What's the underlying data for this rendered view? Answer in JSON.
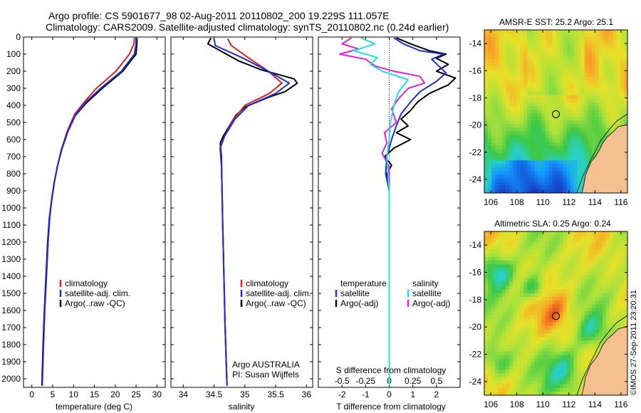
{
  "header": {
    "line1": "Argo profile: CS 5901677_98 02-Aug-2011 20110802_200 19.229S 111.057E",
    "line2": "Climatology: CARS2009. Satellite-adjusted climatology: synTS_20110802.nc (0.24d earlier)"
  },
  "side_text": "©IMOS 27-Sep-2011 23:20:31",
  "colors": {
    "climatology": "#e0201c",
    "satellite": "#1f2fd8",
    "argo": "#000000",
    "sat_salinity": "#22e0e0",
    "argo_salinity": "#e81ee0",
    "land": "#f4c08f"
  },
  "chart_data": [
    {
      "type": "line",
      "xlabel": "temperature (deg C)",
      "xticks": [
        0,
        5,
        10,
        15,
        20,
        25,
        30
      ],
      "xlim": [
        -2,
        32
      ],
      "ylim": [
        2050,
        0
      ],
      "yticks": [
        0,
        100,
        200,
        300,
        400,
        500,
        600,
        700,
        800,
        900,
        1000,
        1100,
        1200,
        1300,
        1400,
        1500,
        1600,
        1700,
        1800,
        1900,
        2000
      ],
      "legend": [
        "climatology",
        "satellite-adj. clim.",
        "Argo(..raw -QC)"
      ],
      "series": [
        {
          "name": "climatology",
          "points": [
            [
              24.6,
              5
            ],
            [
              24.5,
              40
            ],
            [
              23.4,
              100
            ],
            [
              20.2,
              200
            ],
            [
              15.5,
              300
            ],
            [
              12.6,
              380
            ],
            [
              10.3,
              450
            ],
            [
              8.5,
              550
            ],
            [
              7.2,
              650
            ],
            [
              6.2,
              750
            ],
            [
              5.4,
              850
            ],
            [
              4.8,
              950
            ],
            [
              4.3,
              1050
            ],
            [
              3.9,
              1200
            ],
            [
              3.5,
              1400
            ],
            [
              3.1,
              1600
            ],
            [
              2.8,
              1800
            ],
            [
              2.5,
              2040
            ]
          ]
        },
        {
          "name": "satellite-adj. clim.",
          "points": [
            [
              25.0,
              5
            ],
            [
              25.0,
              40
            ],
            [
              24.6,
              100
            ],
            [
              21.5,
              200
            ],
            [
              16.5,
              300
            ],
            [
              13.0,
              380
            ],
            [
              10.6,
              450
            ],
            [
              8.7,
              550
            ],
            [
              7.3,
              650
            ],
            [
              6.2,
              750
            ],
            [
              5.4,
              850
            ],
            [
              4.8,
              950
            ],
            [
              4.3,
              1050
            ],
            [
              3.9,
              1200
            ],
            [
              3.5,
              1400
            ],
            [
              3.1,
              1600
            ],
            [
              2.8,
              1800
            ],
            [
              2.5,
              2040
            ]
          ]
        },
        {
          "name": "Argo(..raw -QC)",
          "points": [
            [
              25.2,
              5
            ],
            [
              25.2,
              40
            ],
            [
              25.0,
              100
            ],
            [
              21.8,
              200
            ],
            [
              16.9,
              300
            ],
            [
              12.9,
              390
            ],
            [
              10.4,
              460
            ],
            [
              8.5,
              560
            ],
            [
              7.1,
              660
            ],
            [
              6.1,
              760
            ],
            [
              5.3,
              860
            ],
            [
              4.7,
              960
            ],
            [
              4.2,
              1060
            ],
            [
              3.8,
              1200
            ],
            [
              3.4,
              1400
            ],
            [
              3.0,
              1600
            ],
            [
              2.7,
              1800
            ],
            [
              2.4,
              2040
            ]
          ]
        }
      ]
    },
    {
      "type": "line",
      "xlabel": "salinity",
      "xticks": [
        34,
        34.5,
        35,
        35.5,
        36
      ],
      "xlim": [
        33.8,
        36.1
      ],
      "ylim": [
        2050,
        0
      ],
      "legend": [
        "climatology",
        "satellite-adj. clim.",
        "Argo(..raw -QC)"
      ],
      "annotations": [
        "Argo AUSTRALIA",
        "PI: Susan Wijffels"
      ],
      "series": [
        {
          "name": "climatology",
          "points": [
            [
              34.72,
              10
            ],
            [
              34.78,
              50
            ],
            [
              35.05,
              120
            ],
            [
              35.38,
              200
            ],
            [
              35.6,
              270
            ],
            [
              35.4,
              330
            ],
            [
              35.0,
              400
            ],
            [
              34.82,
              480
            ],
            [
              34.67,
              580
            ],
            [
              34.6,
              650
            ],
            [
              34.62,
              750
            ],
            [
              34.63,
              900
            ],
            [
              34.64,
              1100
            ],
            [
              34.66,
              1400
            ],
            [
              34.68,
              1700
            ],
            [
              34.71,
              2040
            ]
          ]
        },
        {
          "name": "satellite-adj. clim.",
          "points": [
            [
              34.5,
              10
            ],
            [
              34.52,
              50
            ],
            [
              34.95,
              120
            ],
            [
              35.38,
              200
            ],
            [
              35.72,
              270
            ],
            [
              35.5,
              330
            ],
            [
              35.06,
              400
            ],
            [
              34.84,
              480
            ],
            [
              34.67,
              580
            ],
            [
              34.6,
              650
            ],
            [
              34.62,
              750
            ],
            [
              34.63,
              900
            ],
            [
              34.64,
              1100
            ],
            [
              34.66,
              1400
            ],
            [
              34.68,
              1700
            ],
            [
              34.71,
              2040
            ]
          ]
        },
        {
          "name": "Argo(..raw -QC)",
          "points": [
            [
              34.45,
              5
            ],
            [
              34.4,
              40
            ],
            [
              34.6,
              80
            ],
            [
              34.7,
              100
            ],
            [
              34.9,
              140
            ],
            [
              35.25,
              190
            ],
            [
              35.55,
              220
            ],
            [
              35.8,
              245
            ],
            [
              35.85,
              270
            ],
            [
              35.65,
              320
            ],
            [
              35.4,
              350
            ],
            [
              35.2,
              380
            ],
            [
              35.0,
              410
            ],
            [
              34.85,
              460
            ],
            [
              34.75,
              520
            ],
            [
              34.65,
              580
            ],
            [
              34.6,
              620
            ],
            [
              34.62,
              700
            ],
            [
              34.63,
              900
            ],
            [
              34.64,
              1100
            ],
            [
              34.66,
              1400
            ],
            [
              34.68,
              1700
            ],
            [
              34.71,
              2040
            ]
          ]
        }
      ]
    },
    {
      "type": "line",
      "xlabel_top": "S difference from climatology",
      "xticks_top": [
        "-0.5",
        "-0.25",
        "0",
        "0.25",
        "0.5"
      ],
      "xlabel": "T difference from climatology",
      "xticks": [
        -2,
        -1,
        0,
        1,
        2
      ],
      "xlim": [
        -3,
        3
      ],
      "ylim": [
        2050,
        0
      ],
      "legend_headers": [
        "temperature",
        "salinity"
      ],
      "legend": [
        "satellite",
        "Argo(-adj)",
        "satellite",
        "Argo(-adj)"
      ],
      "series": [
        {
          "name": "satellite",
          "points": [
            [
              0.2,
              5
            ],
            [
              0.6,
              40
            ],
            [
              1.3,
              80
            ],
            [
              2.3,
              100
            ],
            [
              1.8,
              130
            ],
            [
              2.1,
              170
            ],
            [
              2.4,
              210
            ],
            [
              2.0,
              260
            ],
            [
              1.3,
              320
            ],
            [
              0.9,
              380
            ],
            [
              0.5,
              450
            ],
            [
              0.3,
              520
            ],
            [
              0.1,
              600
            ],
            [
              -0.1,
              700
            ],
            [
              -0.15,
              800
            ],
            [
              0,
              900
            ],
            [
              0,
              1100
            ],
            [
              0,
              1500
            ],
            [
              0,
              2040
            ]
          ]
        },
        {
          "name": "Argo(-adj)",
          "points": [
            [
              0.3,
              5
            ],
            [
              0.9,
              40
            ],
            [
              1.7,
              80
            ],
            [
              2.4,
              100
            ],
            [
              2.0,
              125
            ],
            [
              2.5,
              160
            ],
            [
              2.0,
              200
            ],
            [
              2.8,
              240
            ],
            [
              2.5,
              280
            ],
            [
              1.7,
              330
            ],
            [
              1.2,
              380
            ],
            [
              0.9,
              430
            ],
            [
              0.5,
              480
            ],
            [
              0.8,
              520
            ],
            [
              0.3,
              560
            ],
            [
              0.9,
              600
            ],
            [
              0.2,
              650
            ],
            [
              -0.2,
              700
            ],
            [
              0.1,
              750
            ],
            [
              -0.1,
              800
            ],
            [
              0,
              900
            ],
            [
              0,
              1100
            ],
            [
              0,
              1500
            ],
            [
              0,
              2040
            ]
          ]
        },
        {
          "name": "satellite",
          "points": [
            [
              -1.2,
              5
            ],
            [
              -0.6,
              40
            ],
            [
              -1.5,
              80
            ],
            [
              -0.5,
              120
            ],
            [
              -0.8,
              160
            ],
            [
              -0.3,
              200
            ],
            [
              0.8,
              250
            ],
            [
              0.4,
              320
            ],
            [
              0.2,
              400
            ],
            [
              0.05,
              500
            ],
            [
              0,
              600
            ],
            [
              -0.1,
              700
            ],
            [
              -0.05,
              800
            ],
            [
              0,
              900
            ],
            [
              0,
              1200
            ],
            [
              0,
              1600
            ],
            [
              0,
              2040
            ]
          ]
        },
        {
          "name": "Argo(-adj)",
          "points": [
            [
              -1.6,
              5
            ],
            [
              -2.0,
              40
            ],
            [
              -1.3,
              70
            ],
            [
              -2.1,
              100
            ],
            [
              -1.0,
              130
            ],
            [
              -0.6,
              170
            ],
            [
              0.2,
              200
            ],
            [
              1.3,
              230
            ],
            [
              1.5,
              270
            ],
            [
              0.8,
              300
            ],
            [
              0.4,
              360
            ],
            [
              0.1,
              420
            ],
            [
              0.3,
              500
            ],
            [
              -0.2,
              560
            ],
            [
              -0.1,
              620
            ],
            [
              -0.3,
              680
            ],
            [
              0,
              760
            ],
            [
              0,
              900
            ],
            [
              0,
              1200
            ],
            [
              0,
              1600
            ],
            [
              0,
              2040
            ]
          ]
        }
      ]
    },
    {
      "type": "heatmap",
      "title": "AMSR-E SST: 25.2 Argo: 25.1",
      "xticks": [
        106,
        108,
        110,
        112,
        114,
        116
      ],
      "yticks": [
        -14,
        -16,
        -18,
        -20,
        -22,
        -24
      ],
      "xlim": [
        105.5,
        116.5
      ],
      "ylim": [
        -25,
        -13
      ],
      "marker": [
        111.0,
        -19.2
      ]
    },
    {
      "type": "heatmap",
      "title": "Altimetric SLA: 0.25 Argo: 0.24",
      "xticks": [
        106,
        108,
        110,
        112,
        114,
        116
      ],
      "yticks": [
        -14,
        -16,
        -18,
        -20,
        -22,
        -24
      ],
      "xlim": [
        105.5,
        116.5
      ],
      "ylim": [
        -25,
        -13
      ],
      "marker": [
        111.0,
        -19.2
      ]
    }
  ]
}
